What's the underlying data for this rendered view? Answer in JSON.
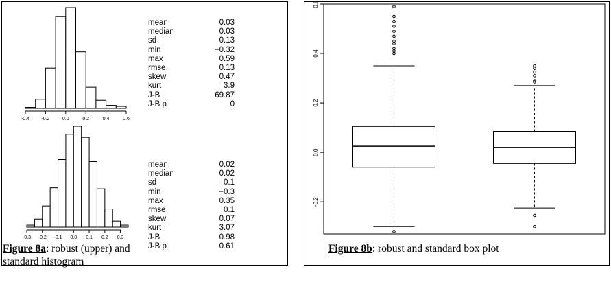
{
  "panels": {
    "robust_hist": {
      "stats": [
        {
          "label": "mean",
          "value": "0.03"
        },
        {
          "label": "median",
          "value": "0.03"
        },
        {
          "label": "sd",
          "value": "0.13"
        },
        {
          "label": "min",
          "value": "−0.32"
        },
        {
          "label": "max",
          "value": "0.59"
        },
        {
          "label": "rmse",
          "value": "0.13"
        },
        {
          "label": "skew",
          "value": "0.47"
        },
        {
          "label": "kurt",
          "value": "3.9"
        },
        {
          "label": "J-B",
          "value": "69.87"
        },
        {
          "label": "J-B p",
          "value": "0"
        }
      ]
    },
    "standard_hist": {
      "stats": [
        {
          "label": "mean",
          "value": "0.02"
        },
        {
          "label": "median",
          "value": "0.02"
        },
        {
          "label": "sd",
          "value": "0.1"
        },
        {
          "label": "min",
          "value": "−0.3"
        },
        {
          "label": "max",
          "value": "0.35"
        },
        {
          "label": "rmse",
          "value": "0.1"
        },
        {
          "label": "skew",
          "value": "0.07"
        },
        {
          "label": "kurt",
          "value": "3.07"
        },
        {
          "label": "J-B",
          "value": "0.98"
        },
        {
          "label": "J-B p",
          "value": "0.61"
        }
      ]
    }
  },
  "captions": {
    "fig8a_label": "Figure 8a",
    "fig8a_text_line1": ": robust (upper) and",
    "fig8a_text_line2": "standard histogram",
    "fig8b_label": "Figure 8b",
    "fig8b_text": ": robust and standard box plot"
  },
  "chart_data": [
    {
      "type": "bar",
      "subtype": "histogram",
      "bin_edges": [
        -0.4,
        -0.3,
        -0.2,
        -0.1,
        0.0,
        0.1,
        0.2,
        0.3,
        0.4,
        0.5,
        0.6
      ],
      "values": [
        1,
        9,
        40,
        91,
        100,
        56,
        21,
        8,
        3,
        2
      ],
      "xticks": [
        "-0.4",
        "-0.2",
        "0.0",
        "0.2",
        "0.4",
        "0.6"
      ],
      "xlim": [
        -0.4,
        0.6
      ],
      "ylim": [
        0,
        100
      ]
    },
    {
      "type": "bar",
      "subtype": "histogram",
      "bin_edges": [
        -0.3,
        -0.25,
        -0.2,
        -0.15,
        -0.1,
        -0.05,
        0.0,
        0.05,
        0.1,
        0.15,
        0.2,
        0.25,
        0.3,
        0.35
      ],
      "values": [
        2,
        8,
        21,
        39,
        67,
        92,
        100,
        89,
        65,
        38,
        18,
        6,
        2
      ],
      "xticks": [
        "-0.3",
        "-0.2",
        "-0.1",
        "0.0",
        "0.1",
        "0.2",
        "0.3"
      ],
      "xlim": [
        -0.3,
        0.35
      ],
      "ylim": [
        0,
        100
      ]
    },
    {
      "type": "box",
      "categories": [
        "robust",
        "standard"
      ],
      "boxes": [
        {
          "name": "robust",
          "whisker_low": -0.3,
          "q1": -0.06,
          "median": 0.025,
          "q3": 0.105,
          "whisker_high": 0.35,
          "outliers": [
            -0.32,
            0.4,
            0.41,
            0.42,
            0.44,
            0.45,
            0.47,
            0.49,
            0.51,
            0.53,
            0.55,
            0.59
          ]
        },
        {
          "name": "standard",
          "whisker_low": -0.225,
          "q1": -0.045,
          "median": 0.02,
          "q3": 0.085,
          "whisker_high": 0.27,
          "outliers": [
            -0.255,
            -0.3,
            0.285,
            0.29,
            0.31,
            0.325,
            0.34,
            0.35
          ]
        }
      ],
      "yticks": [
        "-0.2",
        "0.0",
        "0.2",
        "0.4",
        "0.6"
      ],
      "ylim": [
        -0.33,
        0.6
      ]
    }
  ]
}
